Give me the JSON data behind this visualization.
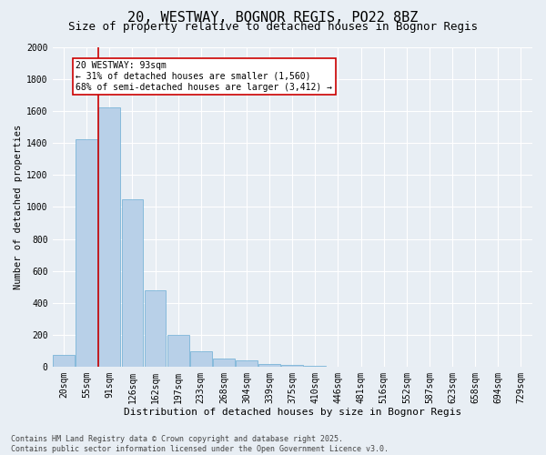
{
  "title1": "20, WESTWAY, BOGNOR REGIS, PO22 8BZ",
  "title2": "Size of property relative to detached houses in Bognor Regis",
  "xlabel": "Distribution of detached houses by size in Bognor Regis",
  "ylabel": "Number of detached properties",
  "categories": [
    "20sqm",
    "55sqm",
    "91sqm",
    "126sqm",
    "162sqm",
    "197sqm",
    "233sqm",
    "268sqm",
    "304sqm",
    "339sqm",
    "375sqm",
    "410sqm",
    "446sqm",
    "481sqm",
    "516sqm",
    "552sqm",
    "587sqm",
    "623sqm",
    "658sqm",
    "694sqm",
    "729sqm"
  ],
  "values": [
    75,
    1420,
    1620,
    1050,
    480,
    200,
    100,
    55,
    40,
    20,
    10,
    5,
    3,
    2,
    1,
    0,
    0,
    0,
    0,
    0,
    0
  ],
  "bar_color": "#b8d0e8",
  "bar_edge_color": "#6aacd4",
  "vline_x_index": 2,
  "vline_color": "#cc0000",
  "annotation_text": "20 WESTWAY: 93sqm\n← 31% of detached houses are smaller (1,560)\n68% of semi-detached houses are larger (3,412) →",
  "annotation_box_facecolor": "#ffffff",
  "annotation_box_edgecolor": "#cc0000",
  "ylim": [
    0,
    2000
  ],
  "yticks": [
    0,
    200,
    400,
    600,
    800,
    1000,
    1200,
    1400,
    1600,
    1800,
    2000
  ],
  "footer1": "Contains HM Land Registry data © Crown copyright and database right 2025.",
  "footer2": "Contains public sector information licensed under the Open Government Licence v3.0.",
  "bg_color": "#e8eef4",
  "grid_color": "#ffffff",
  "title1_fontsize": 11,
  "title2_fontsize": 9,
  "xlabel_fontsize": 8,
  "ylabel_fontsize": 7.5,
  "tick_fontsize": 7,
  "annot_fontsize": 7,
  "footer_fontsize": 6
}
